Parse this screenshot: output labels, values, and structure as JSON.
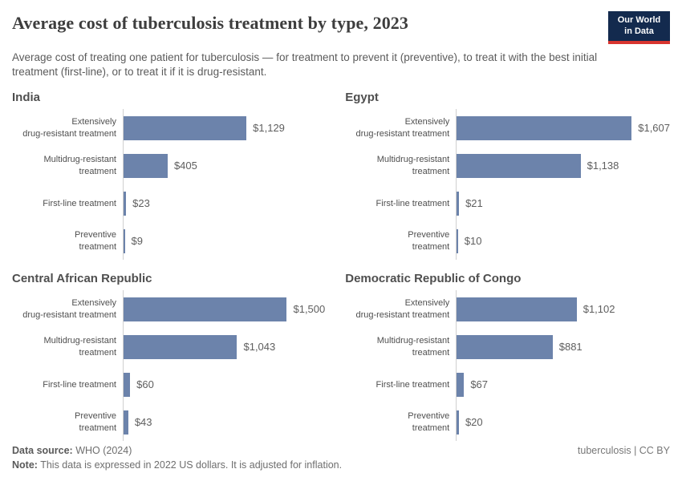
{
  "header": {
    "title": "Average cost of tuberculosis treatment by type, 2023",
    "subtitle": "Average cost of treating one patient for tuberculosis — for treatment to prevent it (preventive), to treat it with the best initial treatment (first-line), or to treat it if it is drug-resistant.",
    "logo": {
      "line1": "Our World",
      "line2": "in Data",
      "bg_color": "#132a4e",
      "accent_color": "#d8352f"
    }
  },
  "chart_data": {
    "type": "bar",
    "orientation": "horizontal",
    "unit": "2022 US dollars",
    "grid": false,
    "legend": "none",
    "xlim": [
      0,
      1607
    ],
    "bar_color": "#6c83ab",
    "axis_color": "#cfcfcf",
    "categories": [
      "Extensively drug-resistant treatment",
      "Multidrug-resistant treatment",
      "First-line treatment",
      "Preventive treatment"
    ],
    "category_lines": [
      "Extensively\ndrug-resistant treatment",
      "Multidrug-resistant\ntreatment",
      "First-line treatment",
      "Preventive\ntreatment"
    ],
    "panels": [
      {
        "country": "India",
        "values": [
          1129,
          405,
          23,
          9
        ],
        "labels": [
          "$1,129",
          "$405",
          "$23",
          "$9"
        ]
      },
      {
        "country": "Egypt",
        "values": [
          1607,
          1138,
          21,
          10
        ],
        "labels": [
          "$1,607",
          "$1,138",
          "$21",
          "$10"
        ]
      },
      {
        "country": "Central African Republic",
        "values": [
          1500,
          1043,
          60,
          43
        ],
        "labels": [
          "$1,500",
          "$1,043",
          "$60",
          "$43"
        ]
      },
      {
        "country": "Democratic Republic of Congo",
        "values": [
          1102,
          881,
          67,
          20
        ],
        "labels": [
          "$1,102",
          "$881",
          "$67",
          "$20"
        ]
      }
    ]
  },
  "footer": {
    "source_label": "Data source:",
    "source_value": " WHO (2024)",
    "note_label": "Note:",
    "note_value": " This data is expressed in 2022 US dollars. It is adjusted for inflation.",
    "right_text": "tuberculosis | CC BY"
  }
}
